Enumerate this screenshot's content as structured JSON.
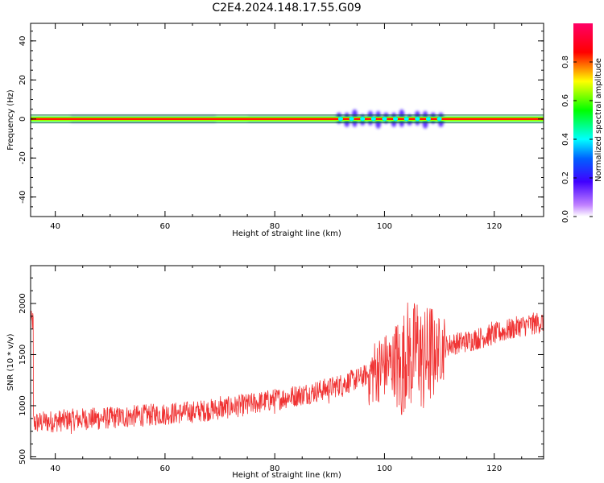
{
  "figure_title": "C2E4.2024.148.17.55.G09",
  "colorbar": {
    "label": "Normalized spectral amplitude",
    "ticks": [
      "0.0",
      "0.2",
      "0.4",
      "0.6",
      "0.8"
    ],
    "colormap": [
      "#ffffff",
      "#8a2be2",
      "#0000ff",
      "#00ffff",
      "#00ff00",
      "#ffff00",
      "#ff0000",
      "#ff0066"
    ]
  },
  "chart_data": [
    {
      "type": "heatmap",
      "title": "",
      "xlabel": "Height of straight line (km)",
      "ylabel": "Frequency (Hz)",
      "xlim": [
        35.5,
        129
      ],
      "ylim": [
        -50,
        49
      ],
      "xticks": [
        40,
        60,
        80,
        100,
        120
      ],
      "yticks": [
        -40,
        -20,
        0,
        20,
        40
      ],
      "description_of_data": "spectral amplitude concentrated near 0 Hz across all heights; spread increases between ~91 and ~111 km",
      "band": {
        "center_hz": 0,
        "core_halfwidth_hz": 0.5,
        "envelope_halfwidth_hz": 2
      },
      "disturbance_range_km": [
        91,
        111
      ],
      "colors": {
        "core": "#ff0000",
        "mid": "#ffff00",
        "outer": "#00ff00",
        "edge": "#00ffff",
        "halo": "#c8a0ff"
      }
    },
    {
      "type": "line",
      "title": "",
      "xlabel": "Height of straight line (km)",
      "ylabel": "SNR (10 * v/v)",
      "xlim": [
        35.5,
        129
      ],
      "ylim": [
        480,
        2370
      ],
      "xticks": [
        40,
        60,
        80,
        100,
        120
      ],
      "yticks": [
        500,
        1000,
        1500,
        2000
      ],
      "line_color": "#f03333",
      "x": [
        36,
        40,
        45,
        50,
        55,
        60,
        65,
        70,
        75,
        80,
        85,
        90,
        95,
        98,
        100,
        102,
        103,
        104,
        105,
        106,
        107,
        108,
        110,
        112,
        115,
        120,
        125,
        129
      ],
      "y": [
        830,
        850,
        870,
        880,
        900,
        920,
        940,
        970,
        1010,
        1060,
        1110,
        1170,
        1260,
        1330,
        1390,
        1420,
        1300,
        1550,
        1450,
        1600,
        1400,
        1500,
        1550,
        1600,
        1630,
        1700,
        1780,
        1820
      ]
    }
  ]
}
